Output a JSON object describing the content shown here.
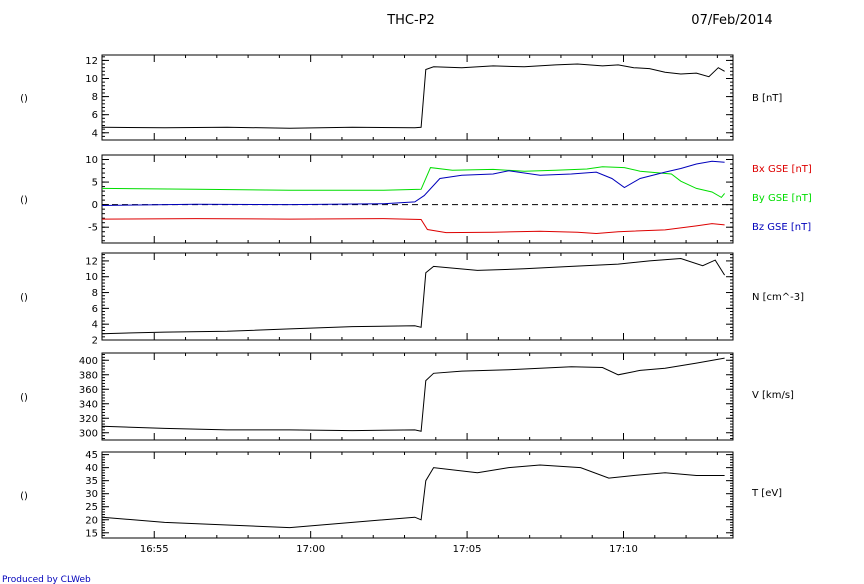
{
  "header": {
    "spacecraft": "THC-P2",
    "date": "07/Feb/2014"
  },
  "footer": {
    "credit": "Produced by CLWeb"
  },
  "colors": {
    "black": "#000000",
    "red": "#dd0000",
    "green": "#00dd00",
    "blue": "#0000bb"
  },
  "chart_data": {
    "type": "line",
    "x_axis": {
      "unit": "time (UT)",
      "range": [
        "16:53:20",
        "17:13:30"
      ],
      "ticks": [
        "16:55",
        "17:00",
        "17:05",
        "17:10"
      ]
    },
    "panels": [
      {
        "id": "b",
        "left_label": "()",
        "ylim": [
          3.2,
          12.6
        ],
        "yticks": [
          4,
          6,
          8,
          10,
          12
        ],
        "zero_line": false,
        "series": [
          {
            "name": "B [nT]",
            "color": "#000000",
            "points": [
              [
                0,
                4.6
              ],
              [
                2,
                4.55
              ],
              [
                4,
                4.6
              ],
              [
                6,
                4.5
              ],
              [
                8,
                4.6
              ],
              [
                10,
                4.55
              ],
              [
                10.2,
                4.6
              ],
              [
                10.35,
                11.0
              ],
              [
                10.6,
                11.3
              ],
              [
                11.5,
                11.2
              ],
              [
                12.5,
                11.4
              ],
              [
                13.5,
                11.3
              ],
              [
                14.5,
                11.5
              ],
              [
                15.2,
                11.6
              ],
              [
                16.0,
                11.4
              ],
              [
                16.5,
                11.5
              ],
              [
                17.0,
                11.2
              ],
              [
                17.5,
                11.1
              ],
              [
                18.0,
                10.7
              ],
              [
                18.5,
                10.5
              ],
              [
                19.0,
                10.6
              ],
              [
                19.4,
                10.2
              ],
              [
                19.7,
                11.2
              ],
              [
                19.9,
                10.8
              ]
            ]
          }
        ]
      },
      {
        "id": "bvec",
        "left_label": "()",
        "ylim": [
          -8.5,
          11
        ],
        "yticks": [
          -5,
          0,
          5,
          10
        ],
        "zero_line": true,
        "series": [
          {
            "name": "Bx GSE [nT]",
            "color": "#dd0000",
            "points": [
              [
                0,
                -3.2
              ],
              [
                3,
                -3.1
              ],
              [
                6,
                -3.2
              ],
              [
                9,
                -3.1
              ],
              [
                10.2,
                -3.3
              ],
              [
                10.4,
                -5.5
              ],
              [
                11.0,
                -6.2
              ],
              [
                12.5,
                -6.1
              ],
              [
                14,
                -5.9
              ],
              [
                15.2,
                -6.1
              ],
              [
                15.8,
                -6.4
              ],
              [
                16.5,
                -6.0
              ],
              [
                18,
                -5.6
              ],
              [
                19,
                -4.7
              ],
              [
                19.5,
                -4.2
              ],
              [
                19.9,
                -4.5
              ]
            ]
          },
          {
            "name": "By GSE [nT]",
            "color": "#00dd00",
            "points": [
              [
                0,
                3.6
              ],
              [
                3,
                3.4
              ],
              [
                6,
                3.2
              ],
              [
                9,
                3.2
              ],
              [
                10.2,
                3.4
              ],
              [
                10.5,
                8.2
              ],
              [
                11.2,
                7.6
              ],
              [
                12.5,
                7.8
              ],
              [
                13.5,
                7.4
              ],
              [
                14.5,
                7.6
              ],
              [
                15.5,
                7.9
              ],
              [
                16.0,
                8.4
              ],
              [
                16.7,
                8.2
              ],
              [
                17.2,
                7.4
              ],
              [
                18.2,
                6.8
              ],
              [
                18.5,
                5.2
              ],
              [
                19.0,
                3.6
              ],
              [
                19.5,
                2.8
              ],
              [
                19.8,
                1.6
              ],
              [
                19.9,
                2.5
              ]
            ]
          },
          {
            "name": "Bz GSE [nT]",
            "color": "#0000bb",
            "points": [
              [
                0,
                -0.2
              ],
              [
                3,
                0.1
              ],
              [
                6,
                0.0
              ],
              [
                9,
                0.2
              ],
              [
                10.0,
                0.6
              ],
              [
                10.3,
                2.0
              ],
              [
                10.8,
                5.8
              ],
              [
                11.5,
                6.5
              ],
              [
                12.5,
                6.8
              ],
              [
                13.0,
                7.5
              ],
              [
                14.0,
                6.5
              ],
              [
                15.0,
                6.8
              ],
              [
                15.8,
                7.2
              ],
              [
                16.3,
                5.8
              ],
              [
                16.7,
                3.8
              ],
              [
                17.2,
                5.8
              ],
              [
                18.0,
                7.2
              ],
              [
                18.5,
                8.0
              ],
              [
                19.0,
                9.0
              ],
              [
                19.5,
                9.6
              ],
              [
                19.9,
                9.4
              ]
            ]
          }
        ]
      },
      {
        "id": "n",
        "left_label": "()",
        "ylim": [
          2,
          13
        ],
        "yticks": [
          2,
          4,
          6,
          8,
          10,
          12
        ],
        "zero_line": false,
        "series": [
          {
            "name": "N [cm^-3]",
            "color": "#000000",
            "points": [
              [
                0,
                2.8
              ],
              [
                2,
                3.0
              ],
              [
                4,
                3.1
              ],
              [
                6,
                3.4
              ],
              [
                8,
                3.7
              ],
              [
                10,
                3.8
              ],
              [
                10.2,
                3.6
              ],
              [
                10.35,
                10.5
              ],
              [
                10.6,
                11.3
              ],
              [
                12,
                10.8
              ],
              [
                13.5,
                11.0
              ],
              [
                15,
                11.3
              ],
              [
                16.5,
                11.6
              ],
              [
                17.5,
                12.0
              ],
              [
                18.5,
                12.3
              ],
              [
                19.2,
                11.4
              ],
              [
                19.6,
                12.1
              ],
              [
                19.9,
                10.2
              ]
            ]
          }
        ]
      },
      {
        "id": "v",
        "left_label": "()",
        "ylim": [
          290,
          410
        ],
        "yticks": [
          300,
          320,
          340,
          360,
          380,
          400
        ],
        "zero_line": false,
        "series": [
          {
            "name": "V [km/s]",
            "color": "#000000",
            "points": [
              [
                0,
                309
              ],
              [
                2,
                306
              ],
              [
                4,
                304
              ],
              [
                6,
                304
              ],
              [
                8,
                303
              ],
              [
                10,
                304
              ],
              [
                10.2,
                302
              ],
              [
                10.35,
                372
              ],
              [
                10.6,
                382
              ],
              [
                11.5,
                385
              ],
              [
                13,
                387
              ],
              [
                15,
                391
              ],
              [
                16,
                390
              ],
              [
                16.5,
                380
              ],
              [
                17.2,
                386
              ],
              [
                18,
                389
              ],
              [
                19,
                396
              ],
              [
                19.9,
                403
              ]
            ]
          }
        ]
      },
      {
        "id": "t",
        "left_label": "()",
        "ylim": [
          13,
          46
        ],
        "yticks": [
          15,
          20,
          25,
          30,
          35,
          40,
          45
        ],
        "zero_line": false,
        "series": [
          {
            "name": "T [eV]",
            "color": "#000000",
            "points": [
              [
                0,
                21
              ],
              [
                2,
                19
              ],
              [
                4,
                18
              ],
              [
                6,
                17
              ],
              [
                8,
                19
              ],
              [
                10,
                21
              ],
              [
                10.2,
                20
              ],
              [
                10.35,
                35
              ],
              [
                10.6,
                40
              ],
              [
                12,
                38
              ],
              [
                13,
                40
              ],
              [
                14,
                41
              ],
              [
                15.3,
                40
              ],
              [
                16.2,
                36
              ],
              [
                17,
                37
              ],
              [
                18,
                38
              ],
              [
                19,
                37
              ],
              [
                19.9,
                37
              ]
            ]
          }
        ]
      }
    ]
  }
}
